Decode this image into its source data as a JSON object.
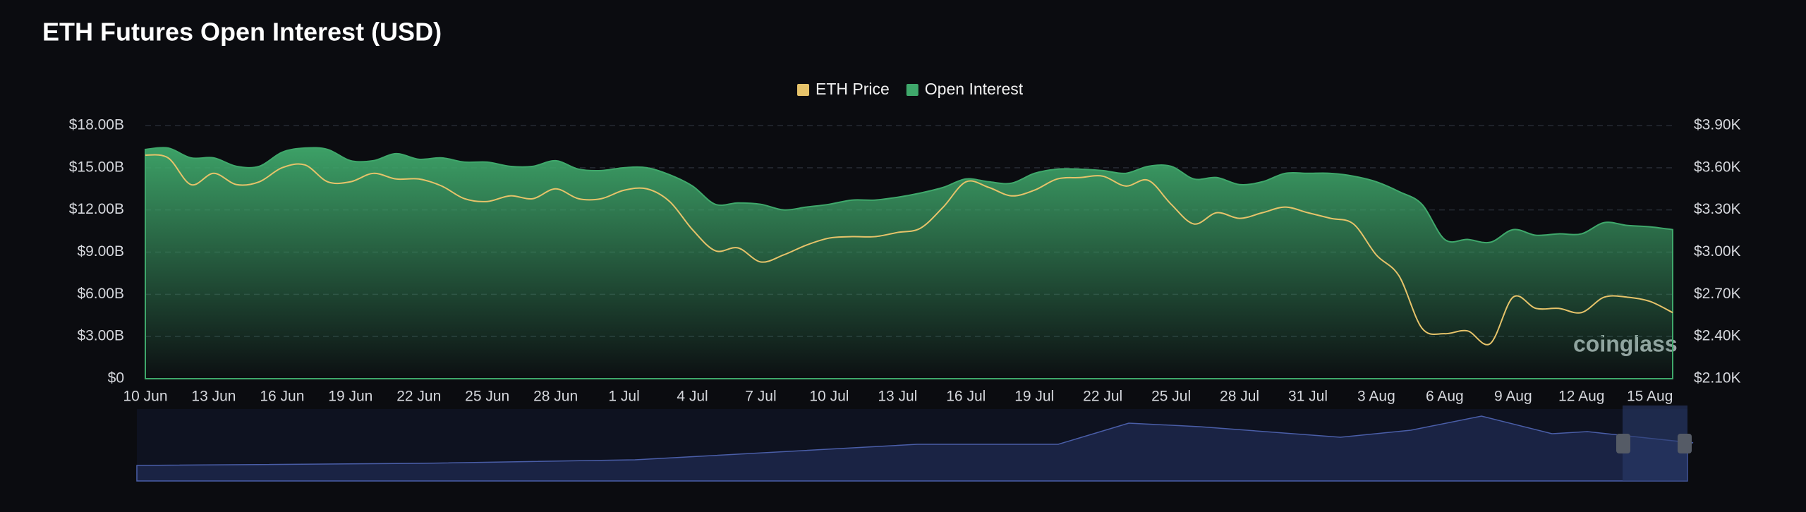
{
  "chart_data": {
    "type": "area-line",
    "title": "ETH Futures Open Interest (USD)",
    "watermark": "coinglass",
    "categories": [
      "10 Jun",
      null,
      null,
      "13 Jun",
      null,
      null,
      "16 Jun",
      null,
      null,
      "19 Jun",
      null,
      null,
      "22 Jun",
      null,
      null,
      "25 Jun",
      null,
      null,
      "28 Jun",
      null,
      null,
      "1 Jul",
      null,
      null,
      "4 Jul",
      null,
      null,
      "7 Jul",
      null,
      null,
      "10 Jul",
      null,
      null,
      "13 Jul",
      null,
      null,
      "16 Jul",
      null,
      null,
      "19 Jul",
      null,
      null,
      "22 Jul",
      null,
      null,
      "25 Jul",
      null,
      null,
      "28 Jul",
      null,
      null,
      "31 Jul",
      null,
      null,
      "3 Aug",
      null,
      null,
      "6 Aug",
      null,
      null,
      "9 Aug",
      null,
      null,
      "12 Aug",
      null,
      null,
      "15 Aug",
      null
    ],
    "series": [
      {
        "name": "ETH Price",
        "color": "#e6c36a",
        "axis": "y2",
        "values": [
          3690,
          3670,
          3480,
          3560,
          3480,
          3500,
          3600,
          3620,
          3500,
          3500,
          3560,
          3520,
          3520,
          3470,
          3380,
          3360,
          3400,
          3380,
          3450,
          3380,
          3380,
          3440,
          3450,
          3360,
          3160,
          3010,
          3030,
          2930,
          2980,
          3050,
          3100,
          3110,
          3110,
          3140,
          3170,
          3320,
          3500,
          3460,
          3400,
          3440,
          3520,
          3530,
          3540,
          3470,
          3510,
          3340,
          3200,
          3280,
          3240,
          3280,
          3320,
          3280,
          3240,
          3200,
          2980,
          2830,
          2460,
          2420,
          2440,
          2350,
          2680,
          2600,
          2600,
          2570,
          2680,
          2680,
          2650,
          2570
        ]
      },
      {
        "name": "Open Interest",
        "color": "#3fa86b",
        "values": [
          16.3,
          16.4,
          15.7,
          15.7,
          15.1,
          15.1,
          16.1,
          16.4,
          16.3,
          15.5,
          15.5,
          16.0,
          15.6,
          15.7,
          15.4,
          15.4,
          15.1,
          15.1,
          15.5,
          14.9,
          14.8,
          15.0,
          15.0,
          14.5,
          13.7,
          12.4,
          12.5,
          12.4,
          12.0,
          12.2,
          12.4,
          12.7,
          12.7,
          12.9,
          13.2,
          13.6,
          14.2,
          14.0,
          13.9,
          14.6,
          14.9,
          14.9,
          14.8,
          14.6,
          15.1,
          15.1,
          14.2,
          14.3,
          13.8,
          14.0,
          14.6,
          14.6,
          14.6,
          14.4,
          14.0,
          13.3,
          12.4,
          9.9,
          9.9,
          9.7,
          10.6,
          10.2,
          10.3,
          10.3,
          11.1,
          10.9,
          10.8,
          10.6
        ]
      }
    ],
    "ylim": [
      0,
      18
    ],
    "yticks": [
      {
        "value": 0,
        "label": "$0"
      },
      {
        "value": 3,
        "label": "$3.00B"
      },
      {
        "value": 6,
        "label": "$6.00B"
      },
      {
        "value": 9,
        "label": "$9.00B"
      },
      {
        "value": 12,
        "label": "$12.00B"
      },
      {
        "value": 15,
        "label": "$15.00B"
      },
      {
        "value": 18,
        "label": "$18.00B"
      }
    ],
    "y2lim": [
      2100,
      3900
    ],
    "y2ticks": [
      {
        "value": 2100,
        "label": "$2.10K"
      },
      {
        "value": 2400,
        "label": "$2.40K"
      },
      {
        "value": 2700,
        "label": "$2.70K"
      },
      {
        "value": 3000,
        "label": "$3.00K"
      },
      {
        "value": 3300,
        "label": "$3.30K"
      },
      {
        "value": 3600,
        "label": "$3.60K"
      },
      {
        "value": 3900,
        "label": "$3.90K"
      }
    ],
    "grid": true,
    "legend": "top"
  }
}
